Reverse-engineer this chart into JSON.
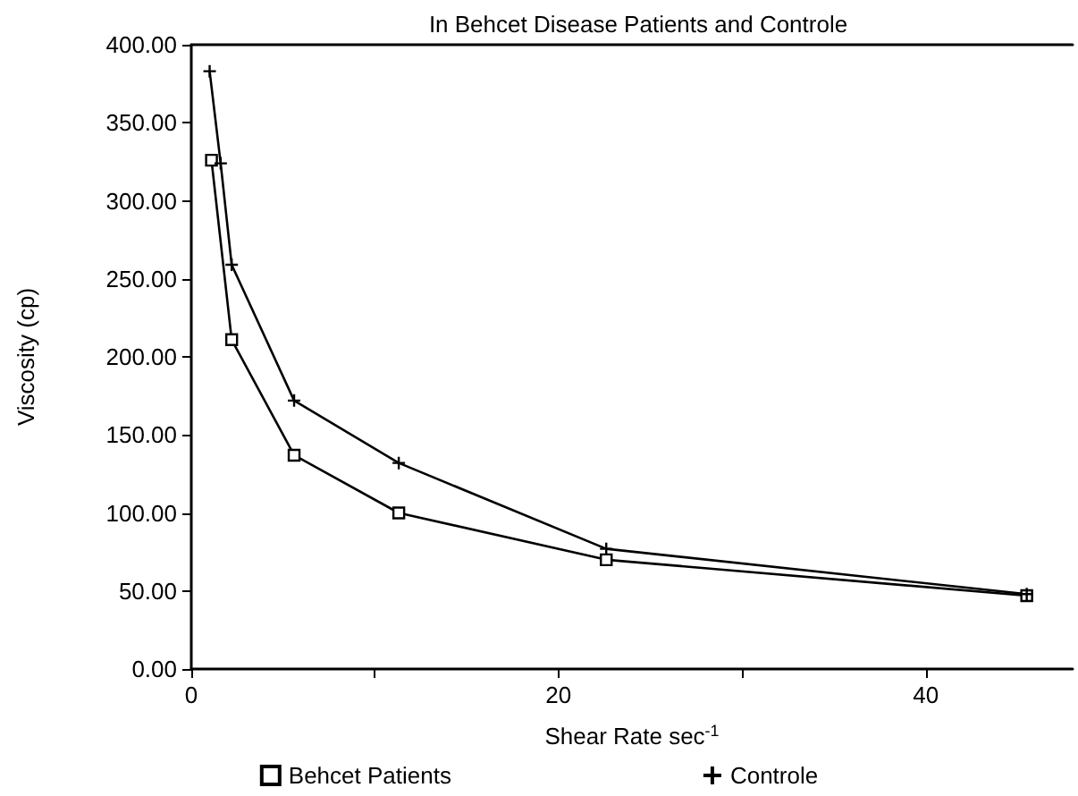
{
  "chart_data": {
    "type": "line",
    "title": "In Behcet Disease Patients and Controle",
    "xlabel": "Shear Rate sec$^{-1}$",
    "ylabel": "Viscosity (cp)",
    "xlim": [
      0,
      48
    ],
    "xticks": [
      0,
      {
        "value": 10,
        "label": null
      },
      20,
      {
        "value": 30,
        "label": null
      },
      40
    ],
    "ylim": [
      0,
      400
    ],
    "yticks": [
      {
        "value": 0,
        "label": "0.00"
      },
      {
        "value": 50,
        "label": "50.00"
      },
      {
        "value": 100,
        "label": "100.00"
      },
      {
        "value": 150,
        "label": "150.00"
      },
      {
        "value": 200,
        "label": "200.00"
      },
      {
        "value": 250,
        "label": "250.00"
      },
      {
        "value": 300,
        "label": "300.00"
      },
      {
        "value": 350,
        "label": "350.00"
      },
      {
        "value": 400,
        "label": "400.00"
      }
    ],
    "grid": false,
    "legend": "bottom",
    "line_style": "solid",
    "series": [
      {
        "name": "Behcet Patients",
        "color": "#000000",
        "marker": "square",
        "x": [
          1.1,
          2.2,
          5.6,
          11.3,
          22.6,
          45.5
        ],
        "values": [
          326,
          211,
          137,
          100,
          70,
          47
        ]
      },
      {
        "name": "Controle",
        "color": "#000000",
        "marker": "cross",
        "x": [
          1.0,
          1.6,
          2.2,
          5.6,
          11.3,
          22.6,
          45.5
        ],
        "values": [
          383,
          324,
          259,
          172,
          132,
          77,
          48
        ]
      }
    ]
  }
}
